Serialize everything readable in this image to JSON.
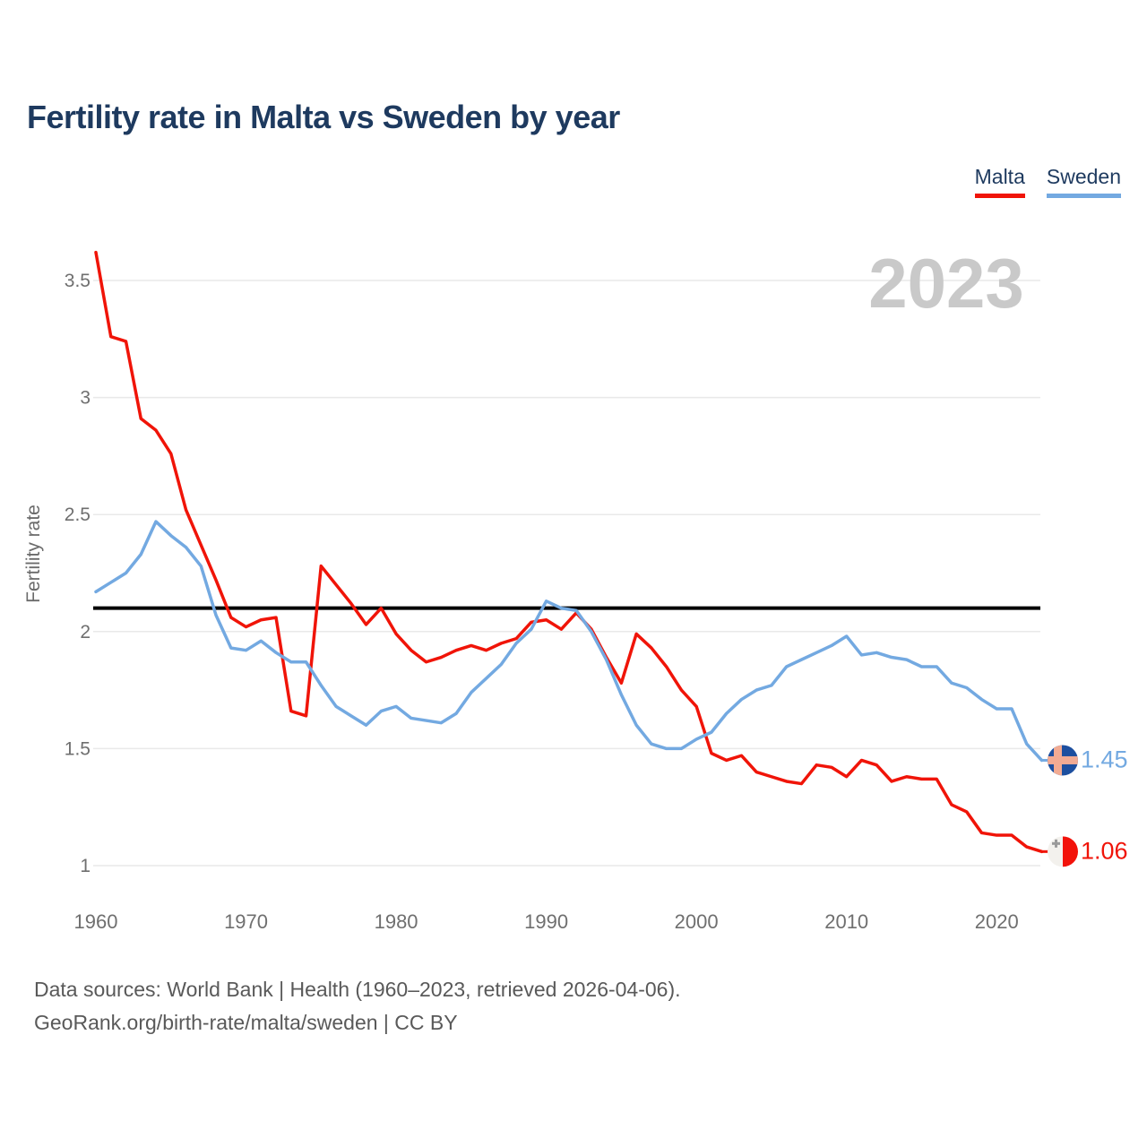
{
  "header": {
    "title": "Fertility rate in Malta vs Sweden by year"
  },
  "legend": [
    {
      "label": "Malta",
      "color": "#f01408"
    },
    {
      "label": "Sweden",
      "color": "#73a9e1"
    }
  ],
  "footer": {
    "line1": "Data sources: World Bank | Health (1960–2023, retrieved 2026-04-06).",
    "line2": "GeoRank.org/birth-rate/malta/sweden | CC BY"
  },
  "colors": {
    "title": "#1e3a5f",
    "tick": "#6f6f6f",
    "axis_label": "#6b6b6b",
    "grid": "#e9e9e9",
    "footer": "#595959",
    "watermark": "#c9c9c9"
  },
  "chart_data": {
    "type": "line",
    "title": "Fertility rate in Malta vs Sweden by year",
    "xlabel": "",
    "ylabel": "Fertility rate",
    "watermark": "2023",
    "grid": "horizontal-only",
    "legend_position": "top-right",
    "xlim": [
      1960,
      2023
    ],
    "ylim": [
      0.95,
      3.7
    ],
    "x_ticks": [
      1960,
      1970,
      1980,
      1990,
      2000,
      2010,
      2020
    ],
    "y_ticks": [
      3.5,
      3,
      2.5,
      2,
      1.5,
      1
    ],
    "reference_line": {
      "value": 2.1,
      "color": "#000000"
    },
    "years": [
      1960,
      1961,
      1962,
      1963,
      1964,
      1965,
      1966,
      1967,
      1968,
      1969,
      1970,
      1971,
      1972,
      1973,
      1974,
      1975,
      1976,
      1977,
      1978,
      1979,
      1980,
      1981,
      1982,
      1983,
      1984,
      1985,
      1986,
      1987,
      1988,
      1989,
      1990,
      1991,
      1992,
      1993,
      1994,
      1995,
      1996,
      1997,
      1998,
      1999,
      2000,
      2001,
      2002,
      2003,
      2004,
      2005,
      2006,
      2007,
      2008,
      2009,
      2010,
      2011,
      2012,
      2013,
      2014,
      2015,
      2016,
      2017,
      2018,
      2019,
      2020,
      2021,
      2022,
      2023
    ],
    "series": [
      {
        "name": "Malta",
        "color": "#f01408",
        "values": [
          3.62,
          3.26,
          3.24,
          2.91,
          2.86,
          2.76,
          2.52,
          2.37,
          2.22,
          2.06,
          2.02,
          2.05,
          2.06,
          1.66,
          1.64,
          2.28,
          2.2,
          2.12,
          2.03,
          2.1,
          1.99,
          1.92,
          1.87,
          1.89,
          1.92,
          1.94,
          1.92,
          1.95,
          1.97,
          2.04,
          2.05,
          2.01,
          2.08,
          2.01,
          1.89,
          1.78,
          1.99,
          1.93,
          1.85,
          1.75,
          1.68,
          1.48,
          1.45,
          1.47,
          1.4,
          1.38,
          1.36,
          1.35,
          1.43,
          1.42,
          1.38,
          1.45,
          1.43,
          1.36,
          1.38,
          1.37,
          1.37,
          1.26,
          1.23,
          1.14,
          1.13,
          1.13,
          1.08,
          1.06
        ]
      },
      {
        "name": "Sweden",
        "color": "#73a9e1",
        "values": [
          2.17,
          2.21,
          2.25,
          2.33,
          2.47,
          2.41,
          2.36,
          2.28,
          2.07,
          1.93,
          1.92,
          1.96,
          1.91,
          1.87,
          1.87,
          1.77,
          1.68,
          1.64,
          1.6,
          1.66,
          1.68,
          1.63,
          1.62,
          1.61,
          1.65,
          1.74,
          1.8,
          1.86,
          1.95,
          2.01,
          2.13,
          2.1,
          2.09,
          2.0,
          1.88,
          1.73,
          1.6,
          1.52,
          1.5,
          1.5,
          1.54,
          1.57,
          1.65,
          1.71,
          1.75,
          1.77,
          1.85,
          1.88,
          1.91,
          1.94,
          1.98,
          1.9,
          1.91,
          1.89,
          1.88,
          1.85,
          1.85,
          1.78,
          1.76,
          1.71,
          1.67,
          1.67,
          1.52,
          1.45
        ]
      }
    ],
    "end_labels": [
      {
        "series": "Sweden",
        "value": "1.45",
        "flag": "sweden"
      },
      {
        "series": "Malta",
        "value": "1.06",
        "flag": "malta"
      }
    ],
    "flags": {
      "sweden": {
        "bg": "#1d4f9f",
        "cross": "#f2ab93"
      },
      "malta": {
        "left": "#f3f1ed",
        "right": "#f2120a",
        "cross": "#9a9a9a"
      }
    }
  }
}
